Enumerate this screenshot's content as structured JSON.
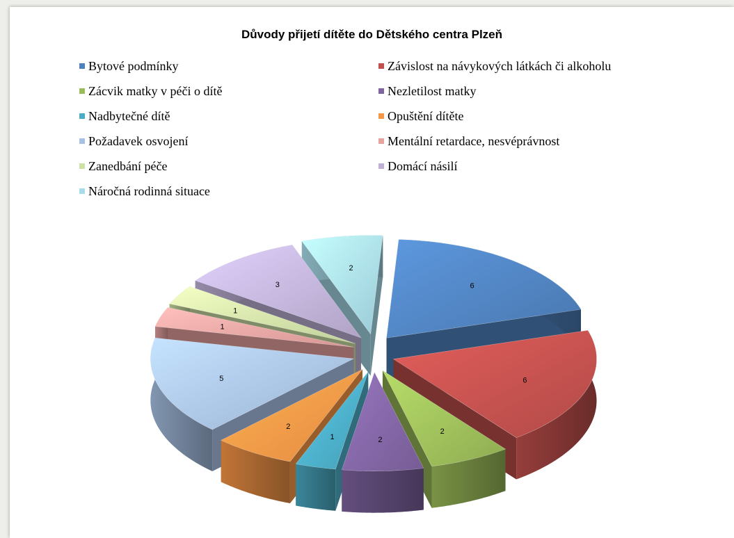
{
  "chart_data": {
    "type": "pie",
    "title": "Důvody přijetí dítěte do Dětského centra Plzeň",
    "slices": [
      {
        "label": "Bytové podmínky",
        "value": 6,
        "color": "#4f81bd"
      },
      {
        "label": "Závislost na návykových látkách či alkoholu",
        "value": 6,
        "color": "#c0504d"
      },
      {
        "label": "Zácvik matky v péči o dítě",
        "value": 2,
        "color": "#9bbb59"
      },
      {
        "label": "Nezletilost matky",
        "value": 2,
        "color": "#8064a2"
      },
      {
        "label": "Nadbytečné dítě",
        "value": 1,
        "color": "#4bacc6"
      },
      {
        "label": "Opuštění dítěte",
        "value": 2,
        "color": "#f79646"
      },
      {
        "label": "Požadavek osvojení",
        "value": 5,
        "color": "#a7c0e4"
      },
      {
        "label": "Mentální retardace, nesvéprávnost",
        "value": 1,
        "color": "#e8a3a1"
      },
      {
        "label": "Zanedbání péče",
        "value": 1,
        "color": "#cfe2a6"
      },
      {
        "label": "Domácí násilí",
        "value": 3,
        "color": "#bfb1d6"
      },
      {
        "label": "Náročná rodinná situace",
        "value": 2,
        "color": "#a8dcea"
      }
    ],
    "legend": "top",
    "style": "3D exploded pie"
  }
}
